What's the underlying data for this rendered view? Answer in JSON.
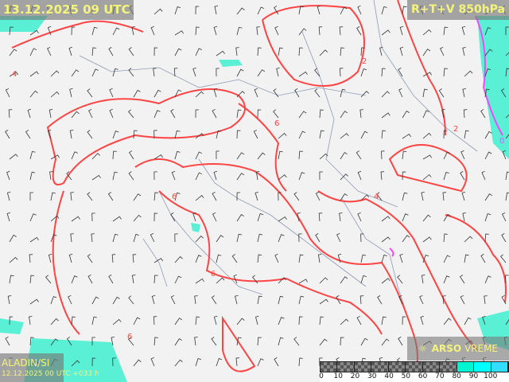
{
  "title": "13.12.2025 09 UTC",
  "product": "R+T+V 850hPa",
  "model": {
    "name": "ALADIN/SI",
    "run": "12.12.2025 00 UTC +033 h"
  },
  "brand": {
    "icon": "arso-sun-icon",
    "bold": "ARSO",
    "normal": "VREME"
  },
  "humidity_scale": {
    "ticks": [
      "0",
      "10",
      "20",
      "30",
      "40",
      "50",
      "60",
      "70",
      "80",
      "90",
      "100"
    ],
    "colors": [
      "checker",
      "checker",
      "checker",
      "checker",
      "checker",
      "checker",
      "checker",
      "checker",
      "#00f5d0",
      "#00ffff",
      "#33ddff"
    ]
  },
  "contour_labels": [
    "4",
    "6",
    "6",
    "6",
    "6",
    "4",
    "2",
    "0",
    "2"
  ],
  "colors": {
    "isotherm": "#ff4444",
    "zero_isotherm": "#ff44ff",
    "humid": "#40f0d0",
    "land": "#f2f2f2",
    "border": "#556688"
  }
}
